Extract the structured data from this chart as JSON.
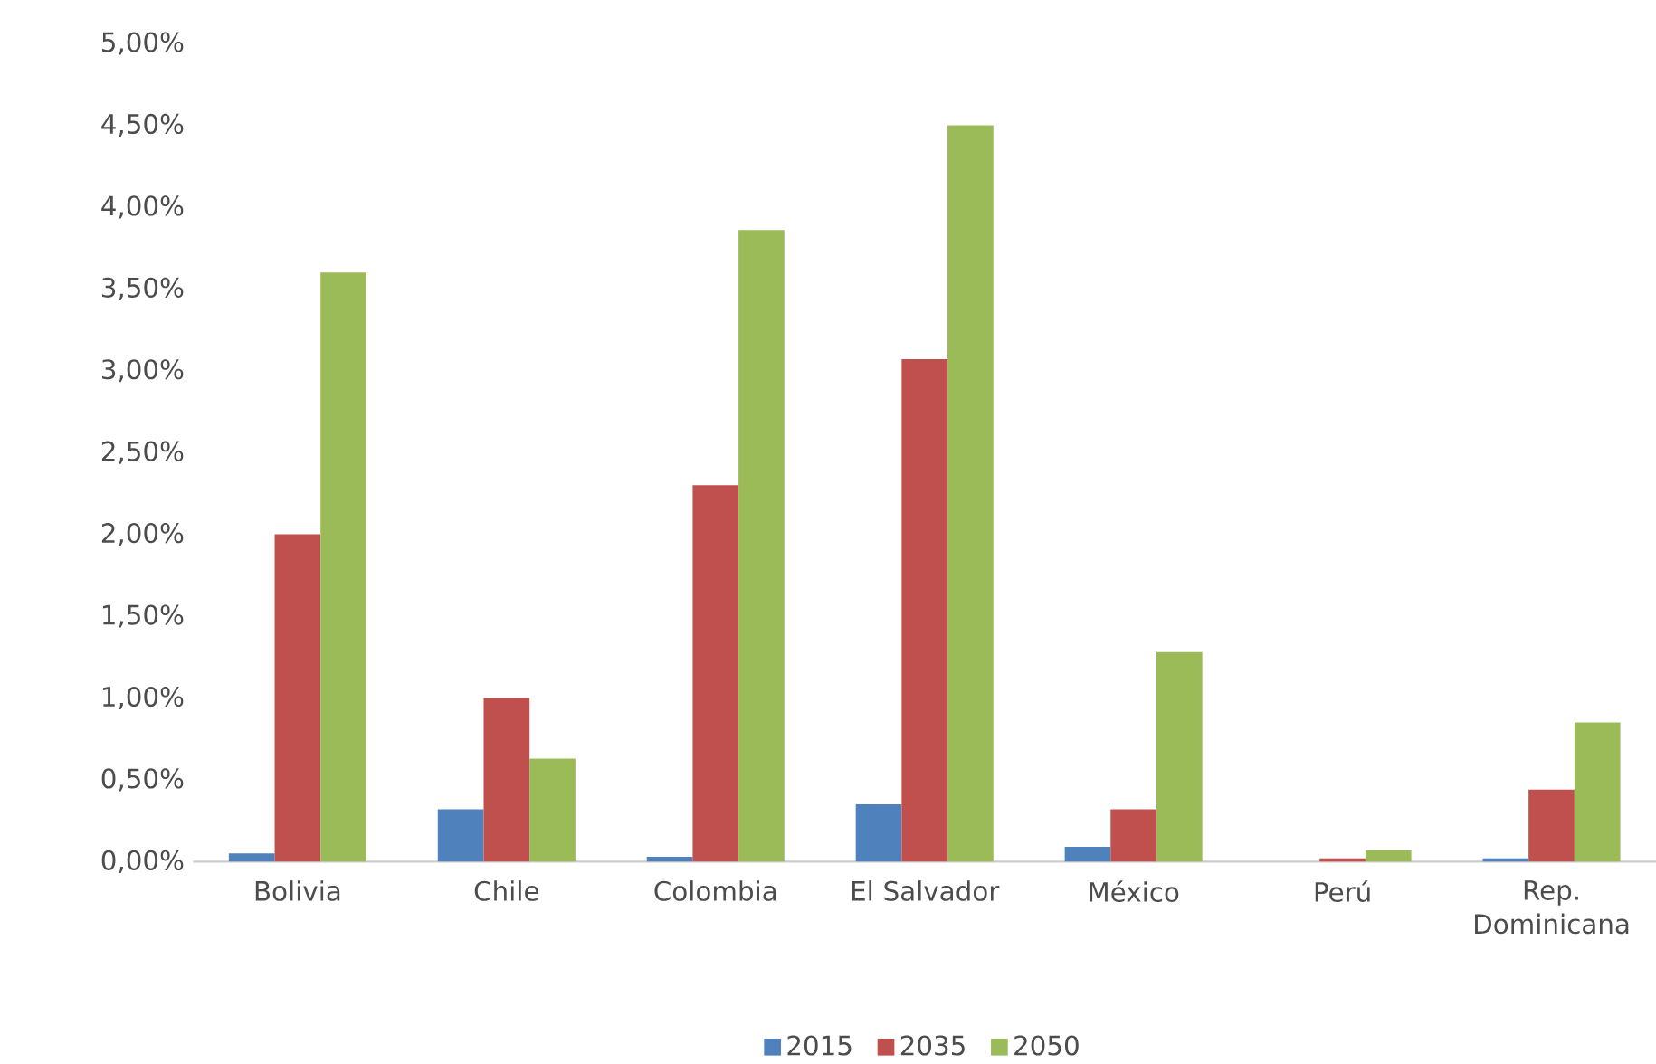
{
  "chart_data": {
    "type": "bar",
    "categories": [
      "Bolivia",
      "Chile",
      "Colombia",
      "El Salvador",
      "México",
      "Perú",
      "Rep. Dominicana"
    ],
    "series": [
      {
        "name": "2015",
        "color": "#4f81bd",
        "values": [
          0.05,
          0.32,
          0.03,
          0.35,
          0.09,
          0,
          0.02
        ]
      },
      {
        "name": "2035",
        "color": "#c0504d",
        "values": [
          2.0,
          1.0,
          2.3,
          3.07,
          0.32,
          0.02,
          0.44
        ]
      },
      {
        "name": "2050",
        "color": "#9bbb59",
        "values": [
          3.6,
          0.63,
          3.86,
          4.5,
          1.28,
          0.07,
          0.85
        ]
      }
    ],
    "ylim": [
      0,
      5
    ],
    "yticks": [
      {
        "value": 0,
        "label": "0,00%"
      },
      {
        "value": 0.5,
        "label": "0,50%"
      },
      {
        "value": 1,
        "label": "1,00%"
      },
      {
        "value": 1.5,
        "label": "1,50%"
      },
      {
        "value": 2,
        "label": "2,00%"
      },
      {
        "value": 2.5,
        "label": "2,50%"
      },
      {
        "value": 3,
        "label": "3,00%"
      },
      {
        "value": 3.5,
        "label": "3,50%"
      },
      {
        "value": 4,
        "label": "4,00%"
      },
      {
        "value": 4.5,
        "label": "4,50%"
      },
      {
        "value": 5,
        "label": "5,00%"
      }
    ],
    "legend": "bottom"
  }
}
